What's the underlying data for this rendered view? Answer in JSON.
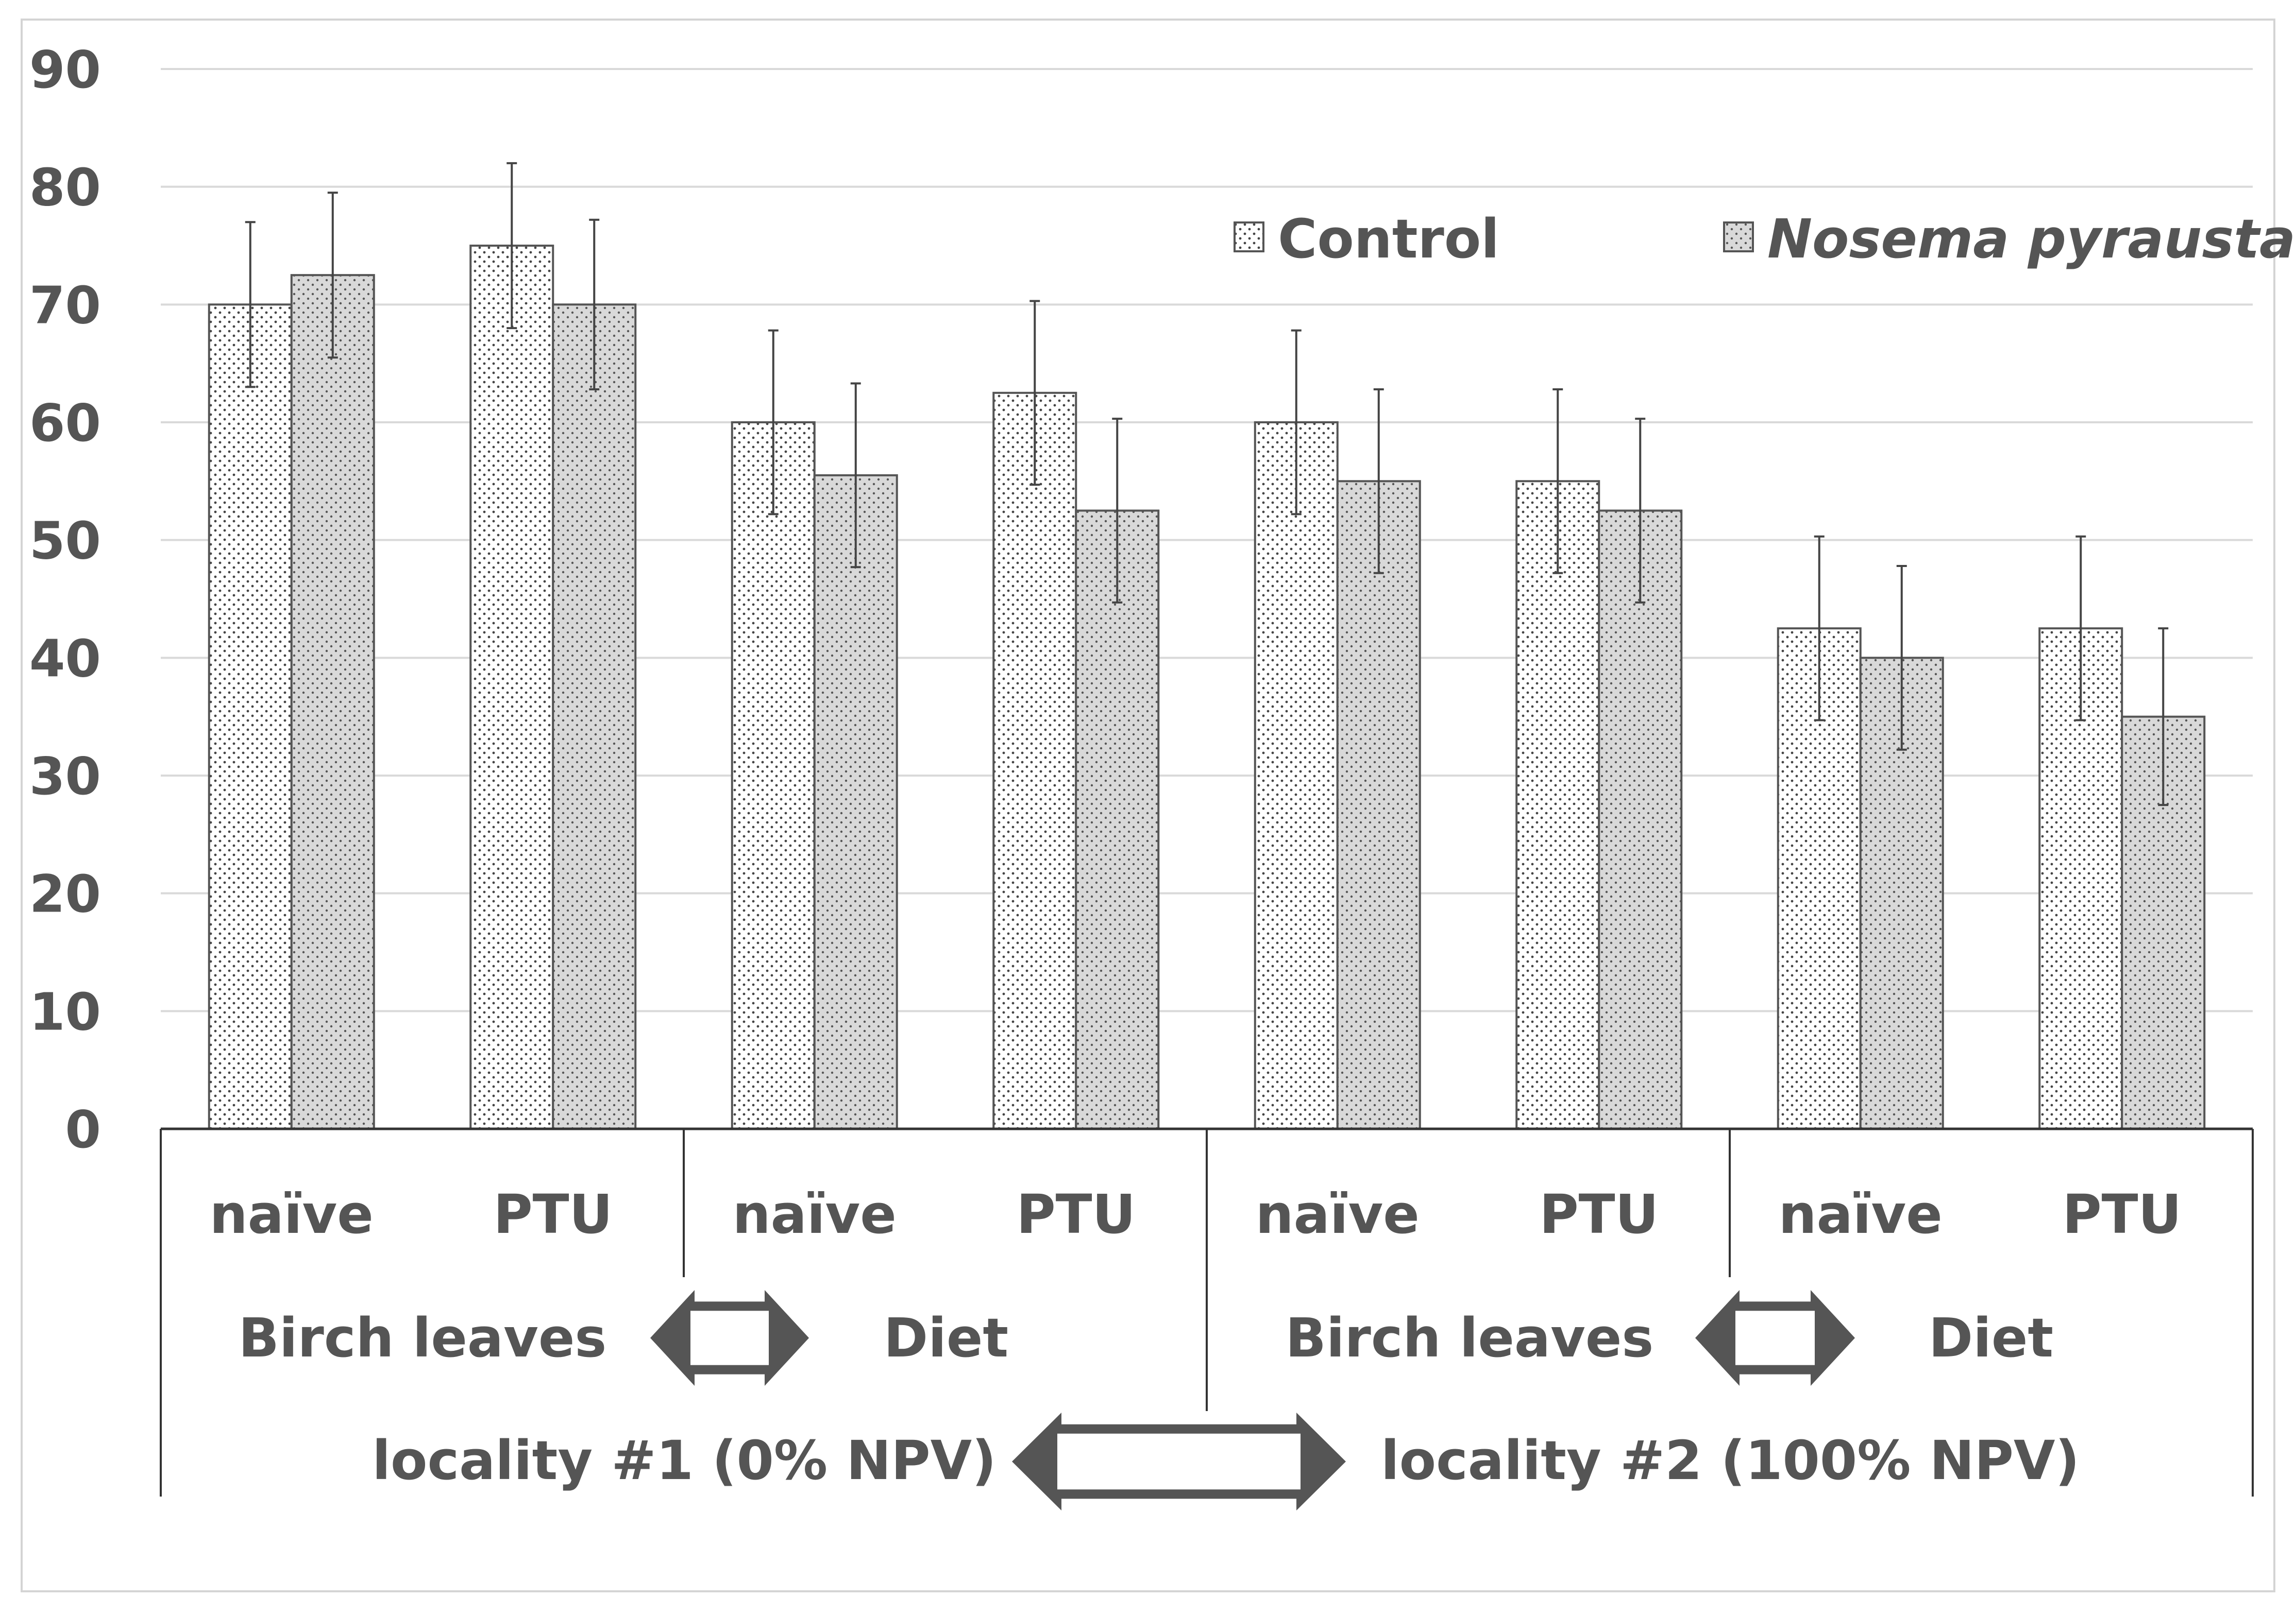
{
  "chart_data": {
    "type": "bar",
    "title": "",
    "xlabel": "",
    "ylabel": "",
    "ylim": [
      0,
      90
    ],
    "yticks": [
      0,
      10,
      20,
      30,
      40,
      50,
      60,
      70,
      80,
      90
    ],
    "grid": true,
    "legend_position": "top-right",
    "categories": [
      "naïve",
      "PTU",
      "naïve",
      "PTU",
      "naïve",
      "PTU",
      "naïve",
      "PTU"
    ],
    "series": [
      {
        "name": "Control",
        "italic": false,
        "pattern": "sparse-dots",
        "fill": "#ffffff",
        "values": [
          70,
          75,
          60,
          62.5,
          60,
          55,
          42.5,
          42.5
        ],
        "error": [
          7,
          7,
          7.8,
          7.8,
          7.8,
          7.8,
          7.8,
          7.8
        ]
      },
      {
        "name": "Nosema pyrausta",
        "italic": true,
        "pattern": "dense-dots",
        "fill": "#d9d9d9",
        "values": [
          72.5,
          70,
          55.5,
          52.5,
          55,
          52.5,
          40,
          35
        ],
        "error": [
          7,
          7.2,
          7.8,
          7.8,
          7.8,
          7.8,
          7.8,
          7.5
        ]
      }
    ],
    "group_labels": [
      {
        "label": "Birch leaves",
        "spans": [
          0,
          1
        ]
      },
      {
        "label": "Diet",
        "spans": [
          2,
          3
        ]
      },
      {
        "label": "Birch leaves",
        "spans": [
          4,
          5
        ]
      },
      {
        "label": "Diet",
        "spans": [
          6,
          7
        ]
      }
    ],
    "locality_labels": [
      {
        "label": "locality #1 (0% NPV)",
        "spans": [
          0,
          3
        ]
      },
      {
        "label": "locality #2 (100% NPV)",
        "spans": [
          4,
          7
        ]
      }
    ]
  },
  "colors": {
    "text": "#555555",
    "grid": "#d9d9d9",
    "bar_stroke": "#555555",
    "axis": "#333333",
    "arrow": "#555555"
  }
}
